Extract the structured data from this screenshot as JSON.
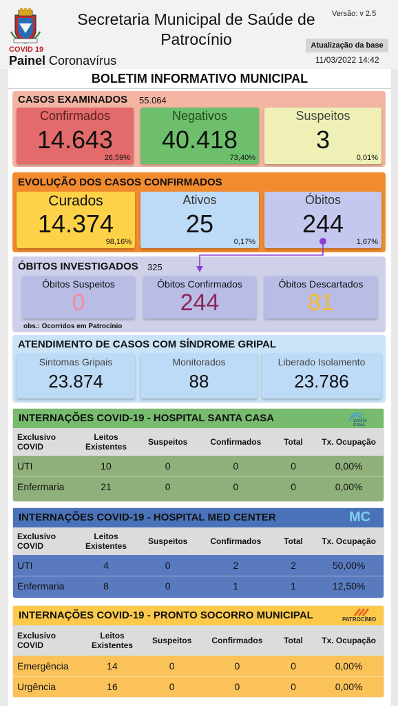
{
  "header": {
    "title": "Secretaria Municipal de Saúde de Patrocínio",
    "version": "Versão: v 2.5",
    "covid_label": "COVID 19",
    "painel_bold": "Painel",
    "painel_rest": "Coronavírus",
    "update_button": "Atualização da base",
    "update_datetime": "11/03/2022 14:42"
  },
  "boletim_title": "BOLETIM INFORMATIVO MUNICIPAL",
  "casos_examinados": {
    "title": "CASOS EXAMINADOS",
    "total": "55.064",
    "cards": [
      {
        "label": "Confirmados",
        "value": "14.643",
        "pct": "26,59%"
      },
      {
        "label": "Negativos",
        "value": "40.418",
        "pct": "73,40%"
      },
      {
        "label": "Suspeitos",
        "value": "3",
        "pct": "0,01%"
      }
    ]
  },
  "evolucao": {
    "title": "EVOLUÇÃO DOS CASOS CONFIRMADOS",
    "cards": [
      {
        "label": "Curados",
        "value": "14.374",
        "pct": "98,16%"
      },
      {
        "label": "Ativos",
        "value": "25",
        "pct": "0,17%"
      },
      {
        "label": "Óbitos",
        "value": "244",
        "pct": "1,67%"
      }
    ]
  },
  "obitos_investigados": {
    "title": "ÓBITOS INVESTIGADOS",
    "total": "325",
    "cards": [
      {
        "label": "Óbitos Suspeitos",
        "value": "0"
      },
      {
        "label": "Óbitos Confirmados",
        "value": "244"
      },
      {
        "label": "Óbitos Descartados",
        "value": "81"
      }
    ],
    "obs": "obs.: Ocorridos em Patrocínio"
  },
  "sindrome_gripal": {
    "title": "ATENDIMENTO DE CASOS COM SÍNDROME GRIPAL",
    "cards": [
      {
        "label": "Sintomas Gripais",
        "value": "23.874"
      },
      {
        "label": "Monitorados",
        "value": "88"
      },
      {
        "label": "Liberado Isolamento",
        "value": "23.786"
      }
    ]
  },
  "santa_casa": {
    "title": "INTERNAÇÕES COVID-19 - HOSPITAL SANTA CASA",
    "logo_text": "SANTA CASA",
    "headers": [
      "Exclusivo COVID",
      "Leitos Existentes",
      "Suspeitos",
      "Confirmados",
      "Total",
      "Tx. Ocupação"
    ],
    "rows": [
      [
        "UTI",
        "10",
        "0",
        "0",
        "0",
        "0,00%"
      ],
      [
        "Enfermaria",
        "21",
        "0",
        "0",
        "0",
        "0,00%"
      ]
    ]
  },
  "med_center": {
    "title": "INTERNAÇÕES COVID-19 - HOSPITAL MED CENTER",
    "logo_text": "MC",
    "headers": [
      "Exclusivo COVID",
      "Leitos Existentes",
      "Suspeitos",
      "Confirmados",
      "Total",
      "Tx. Ocupação"
    ],
    "rows": [
      [
        "UTI",
        "4",
        "0",
        "2",
        "2",
        "50,00%"
      ],
      [
        "Enfermaria",
        "8",
        "0",
        "1",
        "1",
        "12,50%"
      ]
    ]
  },
  "pronto_socorro": {
    "title": "INTERNAÇÕES COVID-19 - PRONTO SOCORRO MUNICIPAL",
    "logo_text": "PATROCÍNIO",
    "headers": [
      "Exclusivo COVID",
      "Leitos Existentes",
      "Suspeitos",
      "Confirmados",
      "Total",
      "Tx. Ocupação"
    ],
    "rows": [
      [
        "Emergência",
        "14",
        "0",
        "0",
        "0",
        "0,00%"
      ],
      [
        "Urgência",
        "16",
        "0",
        "0",
        "0",
        "0,00%"
      ]
    ]
  },
  "colors": {
    "confirmados_bg": "#e46b6b",
    "negativos_bg": "#6dbf6c",
    "suspeitos_bg": "#eff0b6",
    "curados_bg": "#fdd248",
    "ativos_bg": "#bddaf6",
    "obitos_bg": "#c5c8ee",
    "arrow": "#8a3fd4",
    "santa_casa_header": "#77bb6e",
    "med_center_header": "#4a72b8",
    "pronto_socorro_header": "#fcc94a"
  }
}
